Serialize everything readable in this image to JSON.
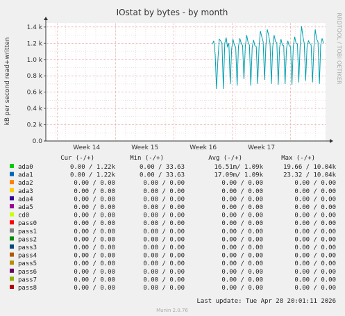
{
  "chart_data": {
    "type": "line",
    "title": "IOstat by bytes - by month",
    "ylabel": "kB per second read+written",
    "side_text": "RRDTOOL / TOBI OETIKER",
    "ylim": [
      0,
      1450
    ],
    "yticks": [
      {
        "value": 0,
        "label": "0.0"
      },
      {
        "value": 200,
        "label": "0.2 k"
      },
      {
        "value": 400,
        "label": "0.4 k"
      },
      {
        "value": 600,
        "label": "0.6 k"
      },
      {
        "value": 800,
        "label": "0.8 k"
      },
      {
        "value": 1000,
        "label": "1.0 k"
      },
      {
        "value": 1200,
        "label": "1.2 k"
      },
      {
        "value": 1400,
        "label": "1.4 k"
      }
    ],
    "xticks": [
      "Week 14",
      "Week 15",
      "Week 16",
      "Week 17"
    ],
    "series": [
      {
        "name": "ada0",
        "color": "#00a0b0",
        "values": [
          1190,
          1230,
          1060,
          640,
          1000,
          1250,
          1230,
          1200,
          640,
          1200,
          1270,
          1160,
          1200,
          700,
          1130,
          1250,
          1180,
          1150,
          680,
          1160,
          1260,
          1200,
          1170,
          760,
          1160,
          1300,
          1210,
          1180,
          680,
          1150,
          1240,
          1170,
          1160,
          700,
          1160,
          1350,
          1280,
          1220,
          750,
          1170,
          1370,
          1300,
          1200,
          700,
          1160,
          1300,
          1220,
          1210,
          690,
          1150,
          1250,
          1180,
          1170,
          700,
          1130,
          1230,
          1170,
          1160,
          690,
          1160,
          1280,
          1200,
          1190,
          720,
          1170,
          1410,
          1280,
          1200,
          740,
          1150,
          1230,
          1200,
          1180,
          720,
          1150,
          1370,
          1250,
          1220,
          700,
          1180,
          1260,
          1200
        ]
      }
    ]
  },
  "legend": {
    "headers": [
      "Cur (-/+)",
      "Min (-/+)",
      "Avg (-/+)",
      "Max (-/+)"
    ],
    "rows": [
      {
        "name": "ada0",
        "color": "#00cc00",
        "cur": "0.00 /  1.22k",
        "min": "0.00 / 33.63",
        "avg": "16.51m/  1.09k",
        "max": "19.66 / 10.04k"
      },
      {
        "name": "ada1",
        "color": "#0066b3",
        "cur": "0.00 /  1.22k",
        "min": "0.00 / 33.63",
        "avg": "17.09m/  1.09k",
        "max": "23.32 / 10.04k"
      },
      {
        "name": "ada2",
        "color": "#ff8000",
        "cur": "0.00 /  0.00",
        "min": "0.00 /  0.00",
        "avg": "0.00 /  0.00",
        "max": "0.00 /  0.00"
      },
      {
        "name": "ada3",
        "color": "#ffcc00",
        "cur": "0.00 /  0.00",
        "min": "0.00 /  0.00",
        "avg": "0.00 /  0.00",
        "max": "0.00 /  0.00"
      },
      {
        "name": "ada4",
        "color": "#330099",
        "cur": "0.00 /  0.00",
        "min": "0.00 /  0.00",
        "avg": "0.00 /  0.00",
        "max": "0.00 /  0.00"
      },
      {
        "name": "ada5",
        "color": "#990099",
        "cur": "0.00 /  0.00",
        "min": "0.00 /  0.00",
        "avg": "0.00 /  0.00",
        "max": "0.00 /  0.00"
      },
      {
        "name": "cd0",
        "color": "#ccff00",
        "cur": "0.00 /  0.00",
        "min": "0.00 /  0.00",
        "avg": "0.00 /  0.00",
        "max": "0.00 /  0.00"
      },
      {
        "name": "pass0",
        "color": "#ff0000",
        "cur": "0.00 /  0.00",
        "min": "0.00 /  0.00",
        "avg": "0.00 /  0.00",
        "max": "0.00 /  0.00"
      },
      {
        "name": "pass1",
        "color": "#808080",
        "cur": "0.00 /  0.00",
        "min": "0.00 /  0.00",
        "avg": "0.00 /  0.00",
        "max": "0.00 /  0.00"
      },
      {
        "name": "pass2",
        "color": "#008f00",
        "cur": "0.00 /  0.00",
        "min": "0.00 /  0.00",
        "avg": "0.00 /  0.00",
        "max": "0.00 /  0.00"
      },
      {
        "name": "pass3",
        "color": "#00487d",
        "cur": "0.00 /  0.00",
        "min": "0.00 /  0.00",
        "avg": "0.00 /  0.00",
        "max": "0.00 /  0.00"
      },
      {
        "name": "pass4",
        "color": "#b35a00",
        "cur": "0.00 /  0.00",
        "min": "0.00 /  0.00",
        "avg": "0.00 /  0.00",
        "max": "0.00 /  0.00"
      },
      {
        "name": "pass5",
        "color": "#b38f00",
        "cur": "0.00 /  0.00",
        "min": "0.00 /  0.00",
        "avg": "0.00 /  0.00",
        "max": "0.00 /  0.00"
      },
      {
        "name": "pass6",
        "color": "#6b006b",
        "cur": "0.00 /  0.00",
        "min": "0.00 /  0.00",
        "avg": "0.00 /  0.00",
        "max": "0.00 /  0.00"
      },
      {
        "name": "pass7",
        "color": "#8fb300",
        "cur": "0.00 /  0.00",
        "min": "0.00 /  0.00",
        "avg": "0.00 /  0.00",
        "max": "0.00 /  0.00"
      },
      {
        "name": "pass8",
        "color": "#b30000",
        "cur": "0.00 /  0.00",
        "min": "0.00 /  0.00",
        "avg": "0.00 /  0.00",
        "max": "0.00 /  0.00"
      }
    ]
  },
  "footer": {
    "last_update": "Last update:  Tue Apr 28 20:01:11 2026",
    "version": "Munin 2.0.76"
  }
}
